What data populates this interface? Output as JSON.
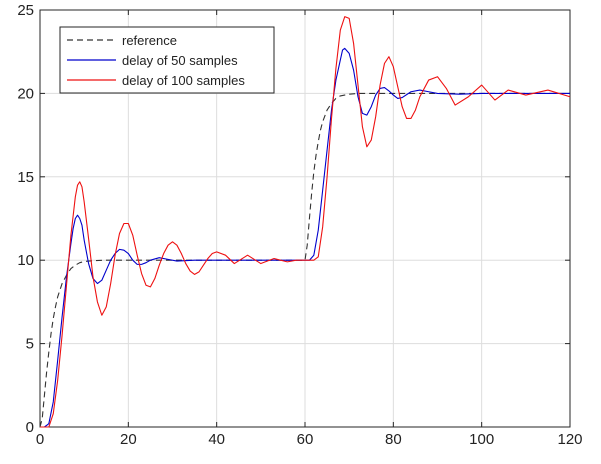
{
  "chart_data": {
    "type": "line",
    "title": "",
    "xlabel": "",
    "ylabel": "",
    "xlim": [
      0,
      120
    ],
    "ylim": [
      0,
      25
    ],
    "xticks": [
      0,
      20,
      40,
      60,
      80,
      100,
      120
    ],
    "yticks": [
      0,
      5,
      10,
      15,
      20,
      25
    ],
    "grid": true,
    "legend_position": "top-left",
    "series": [
      {
        "name": "reference",
        "color": "#333333",
        "style": "dashed",
        "x": [
          0,
          0.5,
          1,
          1.5,
          2,
          2.5,
          3,
          3.5,
          4,
          5,
          6,
          7,
          8,
          9,
          10,
          12,
          15,
          20,
          30,
          40,
          50,
          59,
          60,
          60.5,
          61,
          61.5,
          62,
          62.5,
          63,
          63.5,
          64,
          65,
          66,
          67,
          68,
          70,
          72,
          75,
          80,
          90,
          100,
          110,
          120
        ],
        "y": [
          0,
          0.5,
          1.9,
          3.3,
          4.5,
          5.6,
          6.5,
          7.2,
          7.8,
          8.6,
          9.1,
          9.5,
          9.7,
          9.85,
          9.92,
          9.97,
          10,
          10,
          10,
          10,
          10,
          10,
          10,
          10.9,
          12.5,
          14,
          15.3,
          16.3,
          17.1,
          17.8,
          18.3,
          19,
          19.4,
          19.7,
          19.85,
          19.95,
          20,
          20,
          20,
          20,
          20,
          20,
          20
        ]
      },
      {
        "name": "delay of 50 samples",
        "color": "#0000cc",
        "style": "solid",
        "x": [
          0,
          1,
          2,
          3,
          4,
          5,
          6,
          7,
          7.5,
          8,
          8.5,
          9,
          9.5,
          10,
          11,
          12,
          13,
          14,
          15,
          16,
          17,
          18,
          19,
          20,
          21,
          22,
          23,
          24,
          25,
          27,
          29,
          31,
          35,
          40,
          45,
          50,
          55,
          58,
          60,
          61,
          62,
          63,
          64,
          65,
          66,
          67,
          68,
          68.5,
          69,
          70,
          71,
          72,
          73,
          74,
          75,
          76,
          77,
          78,
          79,
          80,
          81,
          82,
          84,
          86,
          88,
          90,
          95,
          100,
          110,
          120
        ],
        "y": [
          0,
          0,
          0.2,
          1.5,
          4,
          6.6,
          9,
          11,
          11.9,
          12.5,
          12.7,
          12.5,
          12.1,
          11.2,
          9.8,
          8.9,
          8.6,
          8.8,
          9.4,
          10.0,
          10.4,
          10.65,
          10.6,
          10.4,
          10.0,
          9.75,
          9.75,
          9.85,
          10.0,
          10.15,
          10.05,
          9.95,
          10,
          10,
          10,
          10,
          10,
          10,
          10,
          10,
          10.3,
          11.8,
          14.2,
          16.6,
          19,
          20.8,
          22.0,
          22.6,
          22.7,
          22.4,
          21.4,
          19.8,
          18.8,
          18.7,
          19.2,
          19.9,
          20.3,
          20.35,
          20.15,
          19.9,
          19.7,
          19.75,
          20.1,
          20.2,
          20.1,
          20.0,
          19.95,
          20,
          20,
          20
        ]
      },
      {
        "name": "delay of 100 samples",
        "color": "#ee1111",
        "style": "solid",
        "x": [
          0,
          1,
          2,
          3,
          4,
          5,
          6,
          7,
          8,
          8.5,
          9,
          9.5,
          10,
          11,
          12,
          13,
          14,
          15,
          16,
          17,
          18,
          19,
          20,
          21,
          22,
          23,
          24,
          25,
          26,
          27,
          28,
          29,
          30,
          31,
          32,
          33,
          34,
          35,
          36,
          37,
          38,
          39,
          40,
          42,
          44,
          47,
          50,
          53,
          56,
          58,
          60,
          61,
          62,
          63,
          64,
          65,
          66,
          67,
          68,
          69,
          70,
          71,
          72,
          73,
          74,
          75,
          76,
          77,
          78,
          79,
          80,
          81,
          82,
          83,
          84,
          85,
          86,
          88,
          90,
          92,
          94,
          97,
          100,
          103,
          106,
          110,
          115,
          120
        ],
        "y": [
          0,
          0,
          0,
          0.8,
          2.8,
          5.5,
          8.5,
          11.5,
          13.8,
          14.5,
          14.7,
          14.4,
          13.5,
          11.3,
          9.0,
          7.5,
          6.7,
          7.2,
          8.6,
          10.3,
          11.6,
          12.2,
          12.2,
          11.5,
          10.3,
          9.2,
          8.5,
          8.4,
          8.9,
          9.7,
          10.4,
          10.9,
          11.1,
          10.9,
          10.4,
          9.8,
          9.35,
          9.15,
          9.3,
          9.7,
          10.1,
          10.4,
          10.5,
          10.3,
          9.8,
          10.3,
          9.8,
          10.1,
          9.9,
          10.0,
          10,
          10,
          10,
          10.2,
          12.0,
          15.0,
          18.5,
          21.5,
          23.8,
          24.6,
          24.5,
          23.0,
          20.5,
          18.0,
          16.8,
          17.2,
          18.6,
          20.5,
          21.8,
          22.2,
          21.6,
          20.4,
          19.2,
          18.5,
          18.5,
          19.0,
          19.8,
          20.8,
          21.0,
          20.3,
          19.3,
          19.8,
          20.5,
          19.6,
          20.2,
          19.9,
          20.2,
          19.8
        ]
      }
    ]
  }
}
